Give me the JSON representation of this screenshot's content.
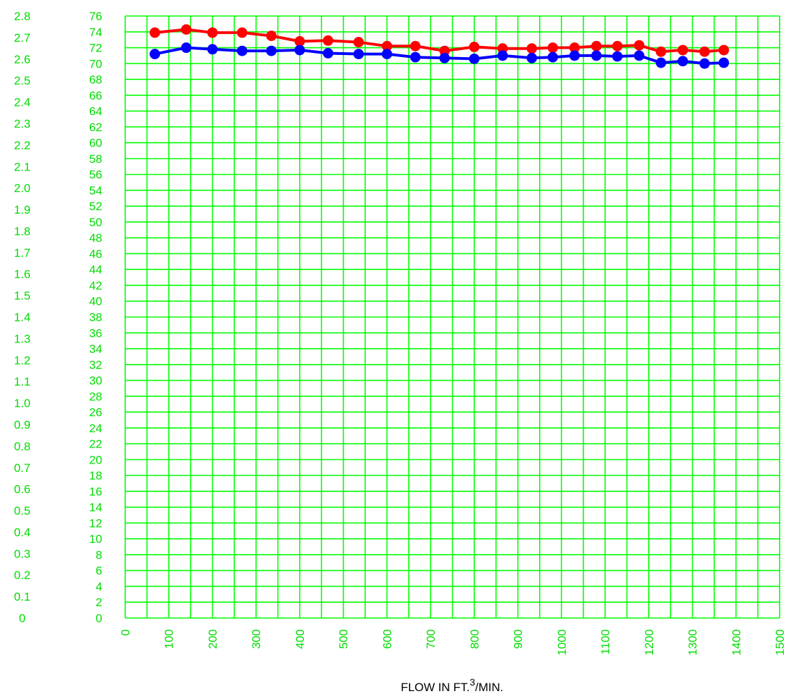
{
  "chart_data": {
    "type": "line",
    "xlabel": "FLOW IN FT.",
    "xlabel_superscript": "3",
    "xlabel_suffix": "/MIN.",
    "xlim": [
      0,
      1500
    ],
    "x_ticks": [
      "0",
      "100",
      "200",
      "300",
      "400",
      "500",
      "600",
      "700",
      "800",
      "900",
      "1000",
      "1100",
      "1200",
      "1300",
      "1400",
      "1500"
    ],
    "ylim": [
      0,
      76
    ],
    "y_ticks": [
      "0",
      "2",
      "4",
      "6",
      "8",
      "10",
      "12",
      "14",
      "16",
      "18",
      "20",
      "22",
      "24",
      "26",
      "28",
      "30",
      "32",
      "34",
      "36",
      "38",
      "40",
      "42",
      "44",
      "46",
      "48",
      "50",
      "52",
      "54",
      "56",
      "58",
      "60",
      "62",
      "64",
      "66",
      "68",
      "70",
      "72",
      "74",
      "76"
    ],
    "y2lim": [
      0,
      2.8
    ],
    "y2_ticks": [
      "0",
      "0.1",
      "0.2",
      "0.3",
      "0.4",
      "0.5",
      "0.6",
      "0.7",
      "0.8",
      "0.9",
      "1.0",
      "1.1",
      "1.2",
      "1.3",
      "1.4",
      "1.5",
      "1.6",
      "1.7",
      "1.8",
      "1.9",
      "2.0",
      "2.1",
      "2.2",
      "2.3",
      "2.4",
      "2.5",
      "2.6",
      "2.7",
      "2.8"
    ],
    "grid": true,
    "x_grid_step": 50,
    "y_grid_step": 2,
    "series": [
      {
        "color": "#ff0000",
        "x": [
          68,
          140,
          200,
          268,
          335,
          400,
          465,
          535,
          600,
          665,
          732,
          800,
          865,
          932,
          980,
          1030,
          1080,
          1128,
          1178,
          1228,
          1278,
          1328,
          1372
        ],
        "y": [
          73.9,
          74.3,
          73.9,
          73.9,
          73.5,
          72.8,
          72.9,
          72.7,
          72.2,
          72.2,
          71.6,
          72.1,
          71.9,
          71.9,
          72.0,
          72.0,
          72.2,
          72.2,
          72.3,
          71.5,
          71.7,
          71.5,
          71.7
        ]
      },
      {
        "color": "#0000ff",
        "x": [
          68,
          140,
          200,
          268,
          335,
          400,
          465,
          535,
          600,
          665,
          732,
          800,
          865,
          932,
          980,
          1030,
          1080,
          1128,
          1178,
          1228,
          1278,
          1328,
          1372
        ],
        "y": [
          71.2,
          72.0,
          71.8,
          71.6,
          71.6,
          71.7,
          71.3,
          71.2,
          71.2,
          70.8,
          70.7,
          70.6,
          71.0,
          70.7,
          70.8,
          71.0,
          71.0,
          70.9,
          71.0,
          70.1,
          70.3,
          70.0,
          70.1
        ]
      }
    ]
  },
  "colors": {
    "grid": "#00ff00",
    "axis_text": "#00dd00",
    "background": "#ffffff"
  }
}
